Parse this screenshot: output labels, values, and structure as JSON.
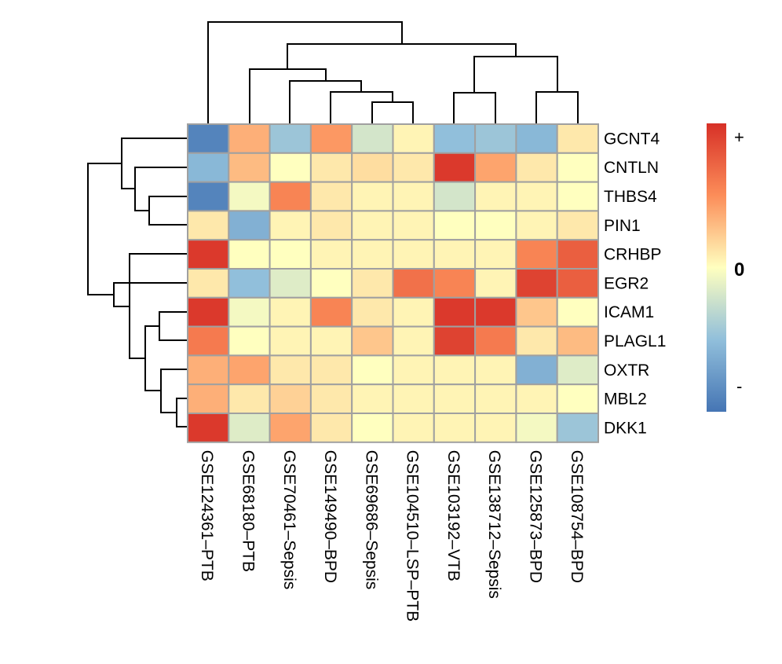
{
  "chart_data": {
    "type": "heatmap",
    "title": "",
    "rows": [
      "GCNT4",
      "CNTLN",
      "THBS4",
      "PIN1",
      "CRHBP",
      "EGR2",
      "ICAM1",
      "PLAGL1",
      "OXTR",
      "MBL2",
      "DKK1"
    ],
    "columns": [
      "GSE124361–PTB",
      "GSE68180–PTB",
      "GSE70461–Sepsis",
      "GSE149490–BPD",
      "GSE69686–Sepsis",
      "GSE104510–LSP–PTB",
      "GSE103192–VTB",
      "GSE138712–Sepsis",
      "GSE125873–BPD",
      "GSE108754–BPD"
    ],
    "values": [
      [
        -0.9,
        0.35,
        -0.45,
        0.45,
        -0.2,
        0.05,
        -0.5,
        -0.45,
        -0.55,
        0.1
      ],
      [
        -0.55,
        0.3,
        0.0,
        0.1,
        0.15,
        0.1,
        0.95,
        0.4,
        0.1,
        0.0
      ],
      [
        -0.9,
        -0.05,
        0.55,
        0.1,
        0.05,
        0.05,
        -0.2,
        0.05,
        0.05,
        0.0
      ],
      [
        0.1,
        -0.6,
        0.05,
        0.1,
        0.05,
        0.05,
        0.0,
        0.0,
        0.05,
        0.1
      ],
      [
        0.95,
        0.0,
        0.0,
        0.05,
        0.05,
        0.05,
        0.05,
        0.05,
        0.55,
        0.75
      ],
      [
        0.1,
        -0.5,
        -0.15,
        0.0,
        0.1,
        0.65,
        0.55,
        0.05,
        0.9,
        0.75
      ],
      [
        0.95,
        -0.05,
        0.05,
        0.55,
        0.1,
        0.05,
        0.95,
        0.95,
        0.25,
        0.0
      ],
      [
        0.6,
        0.0,
        0.05,
        0.05,
        0.25,
        0.05,
        0.9,
        0.6,
        0.1,
        0.3
      ],
      [
        0.35,
        0.4,
        0.1,
        0.1,
        0.0,
        0.05,
        0.05,
        0.05,
        -0.6,
        -0.15
      ],
      [
        0.35,
        0.1,
        0.2,
        0.1,
        0.05,
        0.05,
        0.05,
        0.05,
        0.05,
        0.0
      ],
      [
        0.95,
        -0.15,
        0.4,
        0.1,
        0.0,
        0.05,
        0.05,
        0.05,
        -0.05,
        -0.45
      ]
    ],
    "color_scale": {
      "low": "#4575b4",
      "mid": "#ffffbf",
      "high": "#d73027"
    },
    "legend": {
      "top_label": "+",
      "mid_label": "0",
      "bottom_label": "-",
      "placement": "right"
    },
    "row_dendrogram": true,
    "column_dendrogram": true
  }
}
